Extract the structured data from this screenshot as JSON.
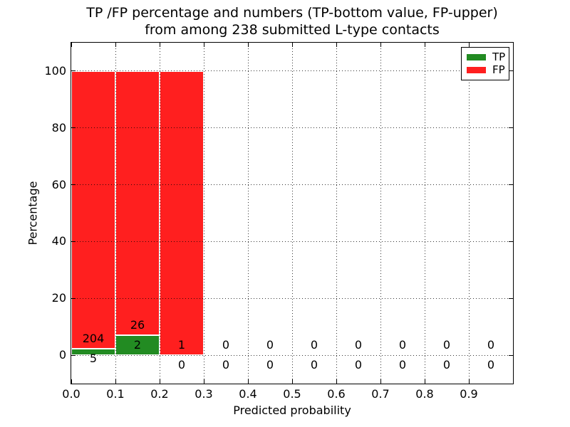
{
  "chart_data": {
    "type": "bar",
    "stacked": true,
    "title_line1": "TP /FP percentage and numbers (TP-bottom value, FP-upper)",
    "title_line2": "from among 238 submitted L-type contacts",
    "xlabel": "Predicted probability",
    "ylabel": "Percentage",
    "total_contacts": 238,
    "xlim": [
      0.0,
      1.0
    ],
    "ylim": [
      -10,
      110
    ],
    "xtick_values": [
      0.0,
      0.1,
      0.2,
      0.3,
      0.4,
      0.5,
      0.6,
      0.7,
      0.8,
      0.9
    ],
    "xtick_labels": [
      "0.0",
      "0.1",
      "0.2",
      "0.3",
      "0.4",
      "0.5",
      "0.6",
      "0.7",
      "0.8",
      "0.9"
    ],
    "ytick_values": [
      0,
      20,
      40,
      60,
      80,
      100
    ],
    "grid": "dotted",
    "legend": {
      "position": "upper-right",
      "items": [
        {
          "label": "TP",
          "color": "#228b22"
        },
        {
          "label": "FP",
          "color": "#ff1f1f"
        }
      ]
    },
    "bins": [
      {
        "range": [
          0.0,
          0.1
        ],
        "tp": 5,
        "fp": 204,
        "tp_pct": 2.39,
        "fp_pct": 97.61
      },
      {
        "range": [
          0.1,
          0.2
        ],
        "tp": 2,
        "fp": 26,
        "tp_pct": 7.14,
        "fp_pct": 92.86
      },
      {
        "range": [
          0.2,
          0.3
        ],
        "tp": 0,
        "fp": 1,
        "tp_pct": 0,
        "fp_pct": 100
      },
      {
        "range": [
          0.3,
          0.4
        ],
        "tp": 0,
        "fp": 0,
        "tp_pct": 0,
        "fp_pct": 0
      },
      {
        "range": [
          0.4,
          0.5
        ],
        "tp": 0,
        "fp": 0,
        "tp_pct": 0,
        "fp_pct": 0
      },
      {
        "range": [
          0.5,
          0.6
        ],
        "tp": 0,
        "fp": 0,
        "tp_pct": 0,
        "fp_pct": 0
      },
      {
        "range": [
          0.6,
          0.7
        ],
        "tp": 0,
        "fp": 0,
        "tp_pct": 0,
        "fp_pct": 0
      },
      {
        "range": [
          0.7,
          0.8
        ],
        "tp": 0,
        "fp": 0,
        "tp_pct": 0,
        "fp_pct": 0
      },
      {
        "range": [
          0.8,
          0.9
        ],
        "tp": 0,
        "fp": 0,
        "tp_pct": 0,
        "fp_pct": 0
      },
      {
        "range": [
          0.9,
          1.0
        ],
        "tp": 0,
        "fp": 0,
        "tp_pct": 0,
        "fp_pct": 0
      }
    ]
  },
  "colors": {
    "tp_bar": "#228b22",
    "fp_bar": "#ff1f1f",
    "bar_edge": "#ffffff",
    "grid": "#000000",
    "text": "#000000",
    "background": "#ffffff"
  }
}
